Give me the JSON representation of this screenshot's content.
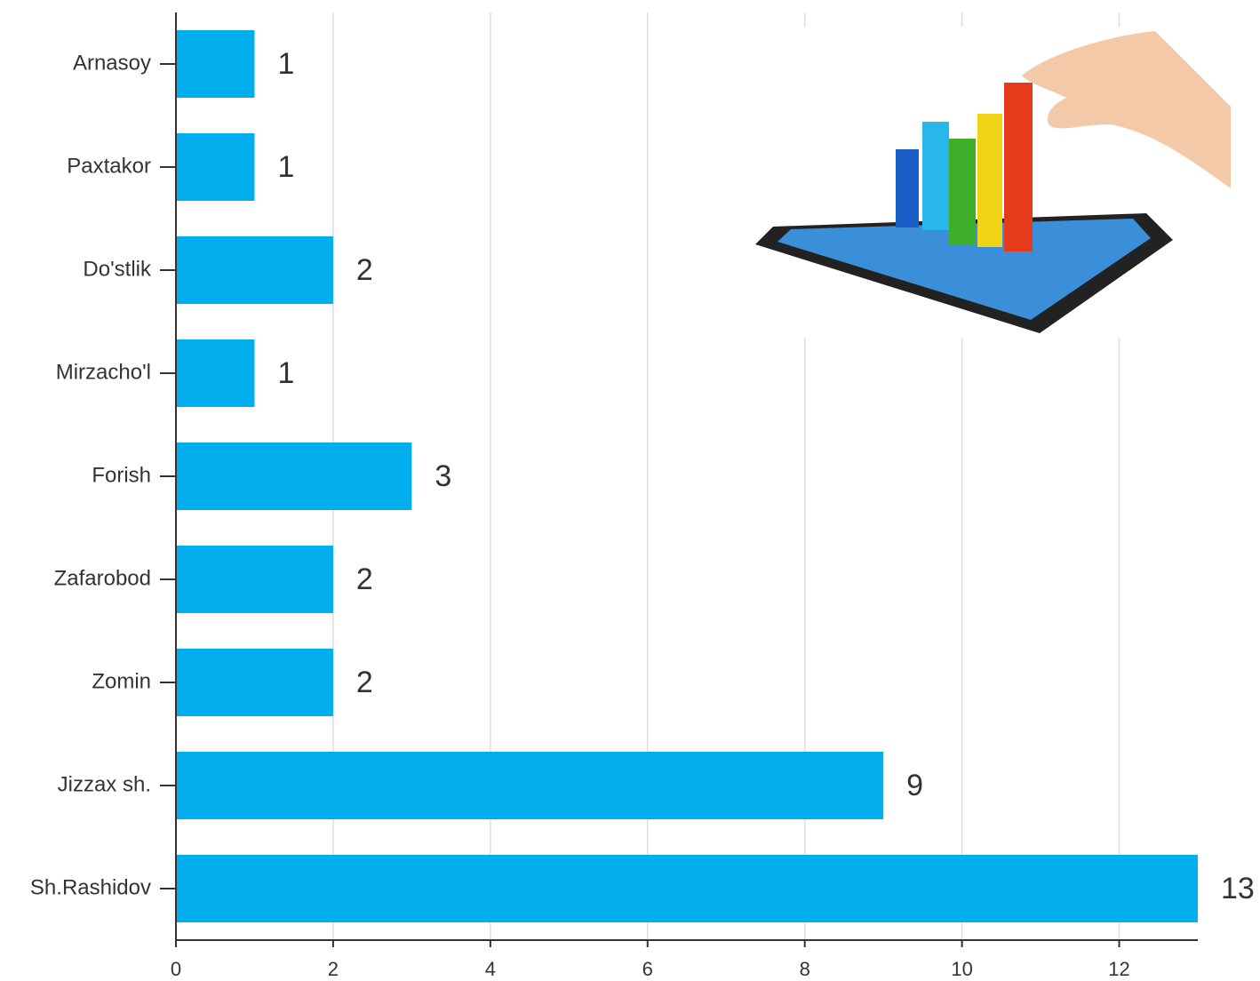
{
  "chart_data": {
    "type": "bar",
    "orientation": "horizontal",
    "categories": [
      "Arnasoy",
      "Paxtakor",
      "Do'stlik",
      "Mirzacho'l",
      "Forish",
      "Zafarobod",
      "Zomin",
      "Jizzax sh.",
      "Sh.Rashidov"
    ],
    "values": [
      1,
      1,
      2,
      1,
      3,
      2,
      2,
      9,
      13
    ],
    "color": "#03aeef",
    "xlim": [
      0,
      13
    ],
    "xticks": [
      0,
      2,
      4,
      6,
      8,
      10,
      12
    ],
    "grid": true
  }
}
